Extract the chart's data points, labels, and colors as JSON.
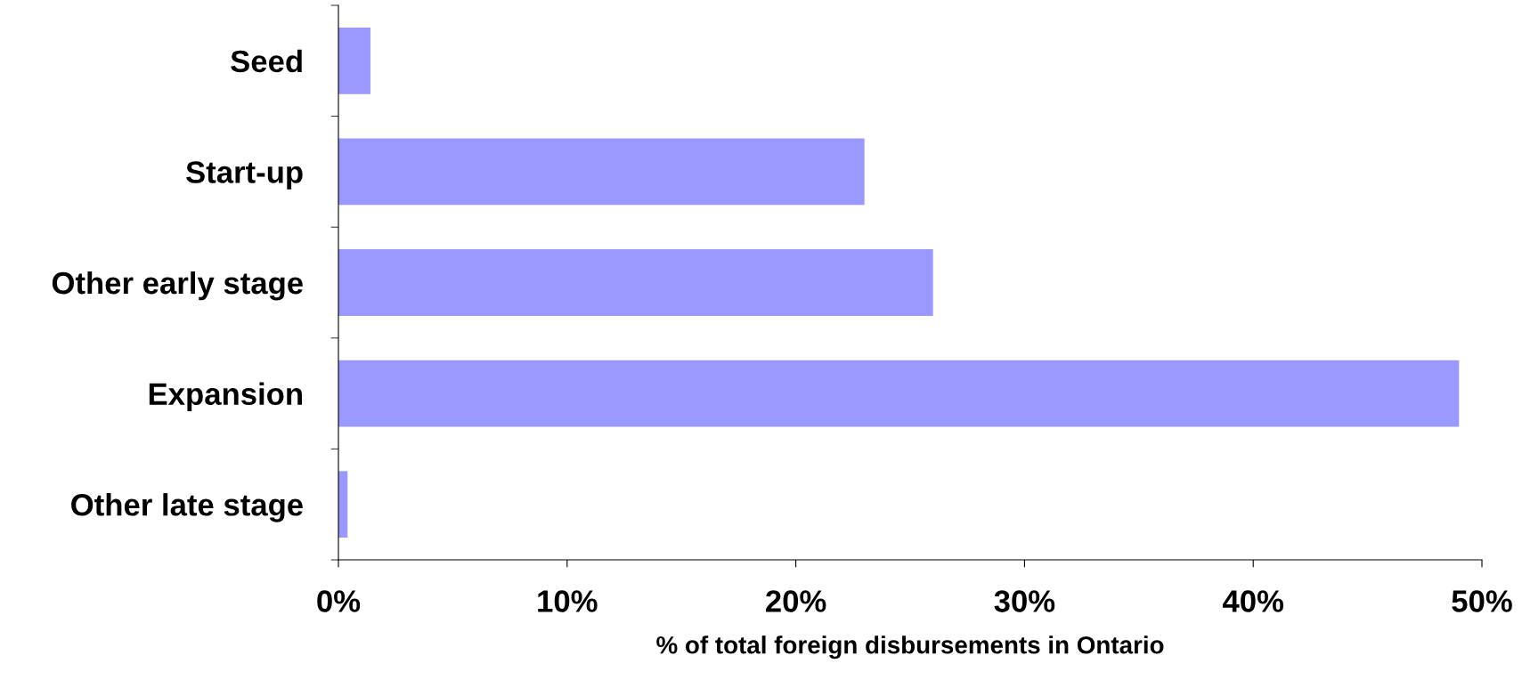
{
  "chart_data": {
    "type": "bar",
    "orientation": "horizontal",
    "xlabel": "% of total foreign disbursements in Ontario",
    "categories": [
      "Seed",
      "Start-up",
      "Other early stage",
      "Expansion",
      "Other late stage"
    ],
    "values": [
      1.4,
      23,
      26,
      49,
      0.4
    ],
    "color": "#9999ff",
    "xlim": [
      0,
      50
    ],
    "xticks": [
      {
        "value": 0,
        "label": "0%"
      },
      {
        "value": 10,
        "label": "10%"
      },
      {
        "value": 20,
        "label": "20%"
      },
      {
        "value": 30,
        "label": "30%"
      },
      {
        "value": 40,
        "label": "40%"
      },
      {
        "value": 50,
        "label": "50%"
      }
    ],
    "grid": false,
    "legend": false
  }
}
